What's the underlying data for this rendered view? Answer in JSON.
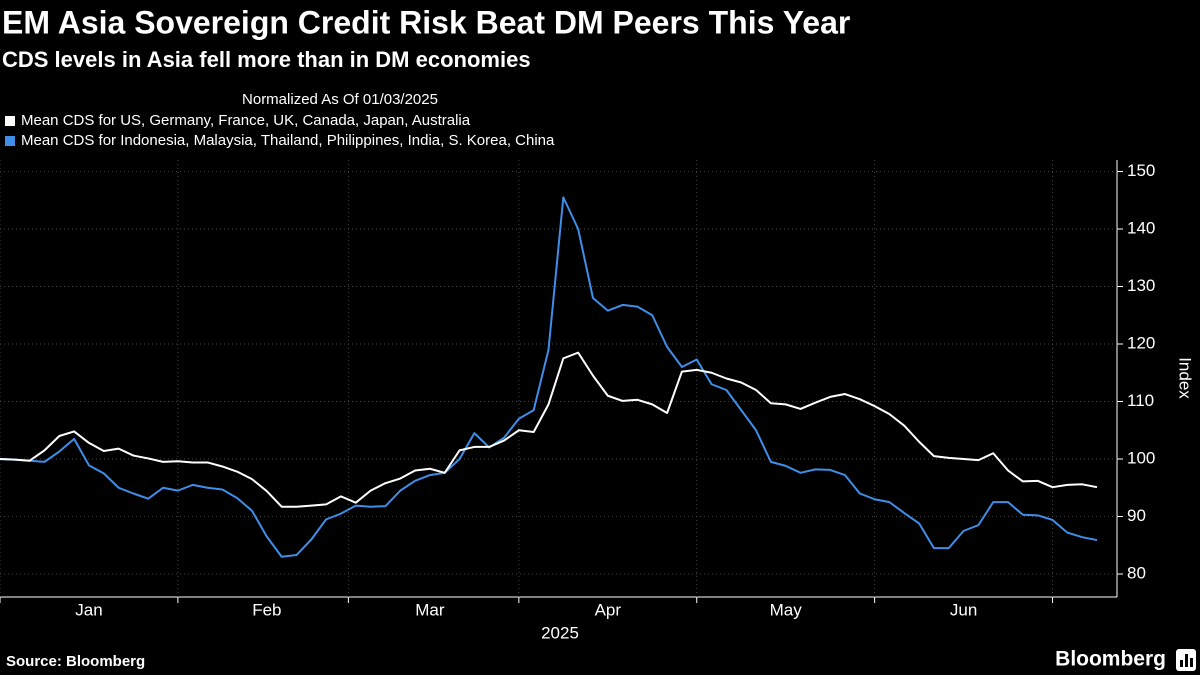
{
  "chart_data": {
    "type": "line",
    "title": "EM Asia Sovereign Credit Risk Beat DM Peers This Year",
    "subtitle": "CDS levels in Asia fell more than in DM economies",
    "legend_title": "Normalized As Of 01/03/2025",
    "xlabel": "2025",
    "ylabel": "Index",
    "source": "Source: Bloomberg",
    "brand": "Bloomberg",
    "categories": [
      null,
      null,
      null,
      null,
      null,
      null,
      "Jan",
      null,
      null,
      null,
      null,
      null,
      null,
      null,
      null,
      null,
      null,
      null,
      "Feb",
      null,
      null,
      null,
      null,
      null,
      null,
      null,
      null,
      null,
      null,
      "Mar",
      null,
      null,
      null,
      null,
      null,
      null,
      null,
      null,
      null,
      null,
      null,
      "Apr",
      null,
      null,
      null,
      null,
      null,
      null,
      null,
      null,
      null,
      null,
      null,
      "May",
      null,
      null,
      null,
      null,
      null,
      null,
      null,
      null,
      null,
      null,
      null,
      "Jun",
      null,
      null,
      null,
      null,
      null,
      null,
      null,
      null,
      null
    ],
    "series": [
      {
        "name": "Mean CDS for US, Germany, France, UK, Canada, Japan, Australia",
        "color": "#ffffff",
        "values": [
          100,
          99.9,
          99.7,
          101.5,
          104,
          104.8,
          102.8,
          101.4,
          101.8,
          100.6,
          100.1,
          99.5,
          99.6,
          99.4,
          99.4,
          98.7,
          97.8,
          96.5,
          94.4,
          91.7,
          91.7,
          91.9,
          92.1,
          93.5,
          92.4,
          94.5,
          95.8,
          96.6,
          98,
          98.3,
          97.6,
          101.5,
          102.1,
          102.1,
          103.2,
          105,
          104.7,
          109.5,
          117.5,
          118.5,
          114.5,
          111,
          110.1,
          110.3,
          109.5,
          108,
          115.2,
          115.5,
          115,
          114,
          113.3,
          112,
          109.7,
          109.5,
          108.7,
          109.8,
          110.8,
          111.3,
          110.4,
          109.2,
          107.8,
          105.8,
          103,
          100.5,
          100.2,
          100,
          99.8,
          101,
          98,
          96.1,
          96.2,
          95.1,
          95.5,
          95.6,
          95.1
        ]
      },
      {
        "name": "Mean CDS for Indonesia, Malaysia, Thailand, Philippines, India, S. Korea, China",
        "color": "#3f8ee8",
        "values": [
          100,
          99.9,
          99.7,
          99.5,
          101.3,
          103.5,
          98.9,
          97.5,
          95,
          94,
          93.1,
          95,
          94.5,
          95.5,
          95,
          94.7,
          93.2,
          91,
          86.5,
          83,
          83.3,
          86,
          89.5,
          90.5,
          91.9,
          91.7,
          91.8,
          94.5,
          96.2,
          97.2,
          97.6,
          100,
          104.5,
          102,
          103.7,
          107,
          108.5,
          119,
          145.5,
          140,
          128,
          125.8,
          126.8,
          126.5,
          125,
          119.5,
          116,
          117.3,
          113,
          112,
          108.5,
          105,
          99.5,
          98.8,
          97.6,
          98.2,
          98.1,
          97.2,
          94,
          93,
          92.5,
          90.6,
          88.8,
          84.5,
          84.5,
          87.5,
          88.5,
          92.5,
          92.5,
          90.3,
          90.2,
          89.4,
          87.2,
          86.4,
          85.9
        ]
      }
    ],
    "ylim": [
      76,
      152
    ],
    "yticks": [
      80,
      90,
      100,
      110,
      120,
      130,
      140,
      150
    ],
    "grid": true
  }
}
